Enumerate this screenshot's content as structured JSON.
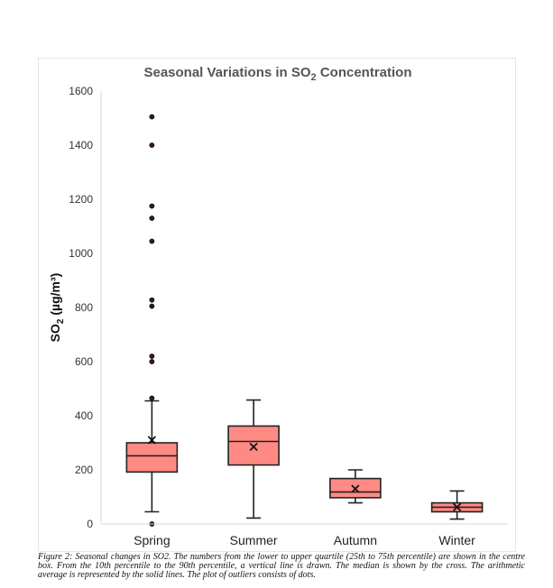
{
  "chart_data": {
    "type": "box",
    "title_main": "Seasonal Variations in SO",
    "title_sub": "2",
    "title_tail": " Concentration",
    "ylabel_main": "SO",
    "ylabel_sub": "2",
    "ylabel_tail": " (µg/m³)",
    "ylim": [
      0,
      1600
    ],
    "yticks": [
      0,
      200,
      400,
      600,
      800,
      1000,
      1200,
      1400,
      1600
    ],
    "grid": false,
    "colors": {
      "box_fill": "#ff8a84",
      "box_stroke": "#222222",
      "outlier": "#3a1a1a"
    },
    "categories": [
      "Spring",
      "Summer",
      "Autumn",
      "Winter"
    ],
    "boxes": [
      {
        "category": "Spring",
        "whisker_low": 45,
        "q1": 192,
        "median": 252,
        "q3": 300,
        "whisker_high": 455,
        "mean": 310,
        "outliers": [
          0,
          465,
          600,
          620,
          805,
          828,
          1045,
          1130,
          1175,
          1400,
          1505
        ]
      },
      {
        "category": "Summer",
        "whisker_low": 22,
        "q1": 218,
        "median": 305,
        "q3": 362,
        "whisker_high": 458,
        "mean": 285,
        "outliers": []
      },
      {
        "category": "Autumn",
        "whisker_low": 78,
        "q1": 97,
        "median": 118,
        "q3": 168,
        "whisker_high": 200,
        "mean": 130,
        "outliers": []
      },
      {
        "category": "Winter",
        "whisker_low": 18,
        "q1": 45,
        "median": 62,
        "q3": 78,
        "whisker_high": 122,
        "mean": 62,
        "outliers": []
      }
    ]
  },
  "caption": "Figure 2: Seasonal changes in SO2. The numbers from the lower to upper quartile (25th to 75th percentile) are shown in the centre box. From the 10th percentile to the 90th percentile, a vertical line is drawn. The median is shown by the cross. The arithmetic average is represented by the solid lines. The plot of outliers consists of dots."
}
